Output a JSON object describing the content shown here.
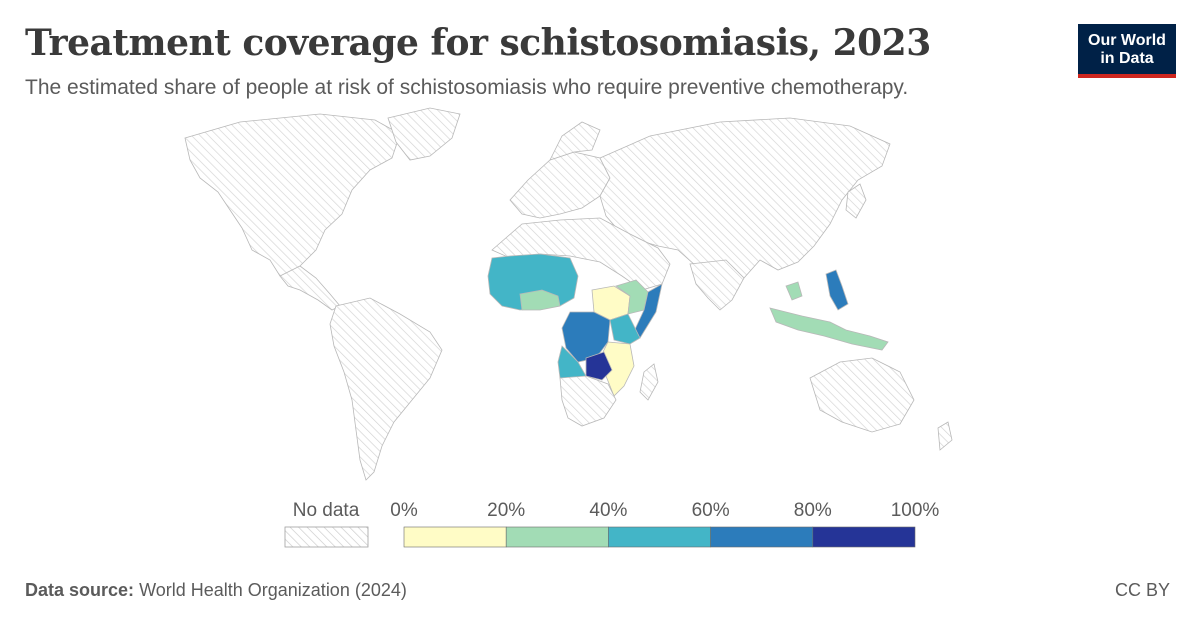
{
  "header": {
    "title": "Treatment coverage for schistosomiasis, 2023",
    "subtitle": "The estimated share of people at risk of schistosomiasis who require preventive chemotherapy.",
    "logo_line1": "Our World",
    "logo_line2": "in Data"
  },
  "legend": {
    "no_data_label": "No data",
    "bins": [
      {
        "label": "0%",
        "color": "#fffcc6"
      },
      {
        "label": "20%",
        "color": "#a2dcb5"
      },
      {
        "label": "40%",
        "color": "#43b5c7"
      },
      {
        "label": "60%",
        "color": "#2c7cbb"
      },
      {
        "label": "80%",
        "color": "#253497"
      }
    ],
    "end_label": "100%"
  },
  "footer": {
    "source_prefix": "Data source:",
    "source_text": "World Health Organization (2024)",
    "license": "CC BY"
  },
  "colors": {
    "no_data_fill": "#f2f2f2",
    "border": "#bdbdbd",
    "hatch": "#cfcfcf"
  }
}
